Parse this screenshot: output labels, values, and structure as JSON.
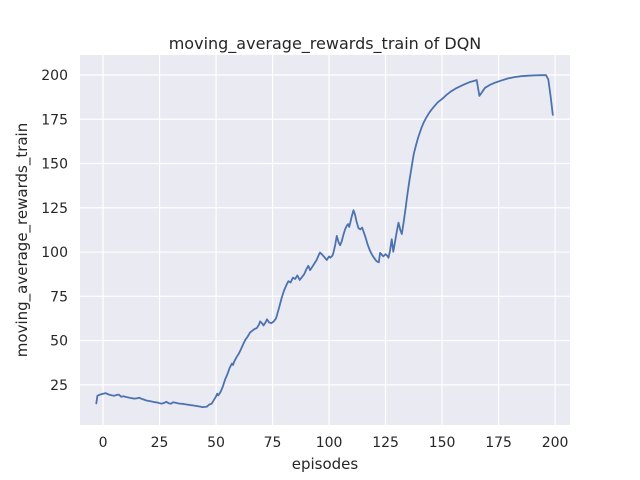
{
  "chart_data": {
    "type": "line",
    "title": "moving_average_rewards_train of DQN",
    "xlabel": "episodes",
    "ylabel": "moving_average_rewards_train",
    "x_ticks": [
      0,
      25,
      50,
      75,
      100,
      125,
      150,
      175,
      200
    ],
    "y_ticks": [
      25,
      50,
      75,
      100,
      125,
      150,
      175,
      200
    ],
    "xlim": [
      -10.2,
      206.6
    ],
    "ylim": [
      2.3,
      211.3
    ],
    "grid": true,
    "legend_visible": false,
    "style": {
      "plot_background": "#eaeaf2",
      "figure_background": "#ffffff",
      "grid_color": "#ffffff",
      "line_color": "#4c72b0",
      "text_color": "#262626"
    },
    "series": [
      {
        "name": "moving_average_rewards_train",
        "points": [
          [
            -3,
            14.5
          ],
          [
            -2.5,
            18.8
          ],
          [
            -1.5,
            19.4
          ],
          [
            0,
            19.9
          ],
          [
            1,
            20.3
          ],
          [
            2,
            19.8
          ],
          [
            3,
            19.3
          ],
          [
            4,
            19.0
          ],
          [
            5,
            18.8
          ],
          [
            6,
            19.3
          ],
          [
            7,
            19.5
          ],
          [
            8,
            18.3
          ],
          [
            9,
            18.5
          ],
          [
            10,
            18.2
          ],
          [
            11,
            17.9
          ],
          [
            12,
            17.6
          ],
          [
            13,
            17.4
          ],
          [
            14,
            17.2
          ],
          [
            15,
            17.4
          ],
          [
            16,
            17.7
          ],
          [
            17,
            17.1
          ],
          [
            18,
            16.7
          ],
          [
            19,
            16.2
          ],
          [
            20,
            15.9
          ],
          [
            21,
            15.7
          ],
          [
            22,
            15.4
          ],
          [
            23,
            15.2
          ],
          [
            24,
            15.0
          ],
          [
            25,
            14.6
          ],
          [
            26,
            14.4
          ],
          [
            27,
            14.8
          ],
          [
            28,
            15.4
          ],
          [
            29,
            14.6
          ],
          [
            30,
            14.3
          ],
          [
            31,
            15.2
          ],
          [
            32,
            14.9
          ],
          [
            33,
            14.6
          ],
          [
            34,
            14.4
          ],
          [
            35,
            14.3
          ],
          [
            36,
            14.1
          ],
          [
            37,
            13.9
          ],
          [
            38,
            13.7
          ],
          [
            39,
            13.5
          ],
          [
            40,
            13.3
          ],
          [
            41,
            13.1
          ],
          [
            42,
            12.9
          ],
          [
            43,
            12.7
          ],
          [
            44,
            12.4
          ],
          [
            45,
            12.5
          ],
          [
            46,
            12.7
          ],
          [
            47,
            13.9
          ],
          [
            48,
            14.3
          ],
          [
            49,
            16.3
          ],
          [
            50,
            18.5
          ],
          [
            50.5,
            20.0
          ],
          [
            51,
            19.0
          ],
          [
            52,
            21.0
          ],
          [
            53,
            24.0
          ],
          [
            54,
            28.0
          ],
          [
            55,
            31.0
          ],
          [
            56,
            34.5
          ],
          [
            57,
            37.0
          ],
          [
            57.5,
            36.2
          ],
          [
            58,
            38.0
          ],
          [
            59,
            40.5
          ],
          [
            60,
            42.5
          ],
          [
            61,
            45.0
          ],
          [
            62,
            48.0
          ],
          [
            63,
            50.5
          ],
          [
            64,
            52.3
          ],
          [
            65,
            54.5
          ],
          [
            66,
            55.5
          ],
          [
            67,
            56.5
          ],
          [
            68,
            57.0
          ],
          [
            69,
            59.0
          ],
          [
            69.5,
            60.8
          ],
          [
            70.5,
            59.5
          ],
          [
            71,
            58.5
          ],
          [
            72,
            60.5
          ],
          [
            72.5,
            62.0
          ],
          [
            73.5,
            60.2
          ],
          [
            74.5,
            59.8
          ],
          [
            75.5,
            60.8
          ],
          [
            76.5,
            62.5
          ],
          [
            77,
            64.6
          ],
          [
            78,
            69.0
          ],
          [
            79,
            74.0
          ],
          [
            80,
            78.0
          ],
          [
            81,
            81.0
          ],
          [
            82,
            83.5
          ],
          [
            83,
            82.8
          ],
          [
            84,
            85.5
          ],
          [
            85,
            84.8
          ],
          [
            86,
            86.8
          ],
          [
            87,
            84.2
          ],
          [
            88,
            85.8
          ],
          [
            89,
            87.5
          ],
          [
            90,
            90.5
          ],
          [
            90.8,
            92.2
          ],
          [
            91.6,
            89.8
          ],
          [
            92.5,
            91.5
          ],
          [
            93.5,
            93.5
          ],
          [
            94.5,
            95.5
          ],
          [
            95.5,
            98.5
          ],
          [
            96,
            99.7
          ],
          [
            97,
            98.5
          ],
          [
            98,
            97.0
          ],
          [
            99,
            95.5
          ],
          [
            99.5,
            96.5
          ],
          [
            100,
            97.5
          ],
          [
            100.5,
            96.8
          ],
          [
            101.5,
            98.0
          ],
          [
            102,
            100.0
          ],
          [
            102.7,
            104.0
          ],
          [
            103.4,
            109.1
          ],
          [
            104.2,
            105.5
          ],
          [
            104.9,
            103.8
          ],
          [
            105.6,
            106.0
          ],
          [
            106.3,
            109.5
          ],
          [
            107,
            112.5
          ],
          [
            107.8,
            114.8
          ],
          [
            108.4,
            115.8
          ],
          [
            108.9,
            114.2
          ],
          [
            109.5,
            117.0
          ],
          [
            110,
            120.0
          ],
          [
            110.8,
            123.6
          ],
          [
            111.5,
            121.0
          ],
          [
            112.2,
            117.0
          ],
          [
            113,
            113.5
          ],
          [
            113.8,
            112.8
          ],
          [
            114.6,
            113.8
          ],
          [
            115.4,
            111.0
          ],
          [
            116.2,
            108.0
          ],
          [
            117,
            104.5
          ],
          [
            118,
            101.0
          ],
          [
            119,
            98.5
          ],
          [
            120,
            96.5
          ],
          [
            121,
            94.8
          ],
          [
            122,
            94.2
          ],
          [
            122.6,
            99.5
          ],
          [
            123.4,
            98.3
          ],
          [
            124,
            97.6
          ],
          [
            125,
            98.8
          ],
          [
            125.7,
            97.9
          ],
          [
            126.3,
            96.8
          ],
          [
            127,
            101.0
          ],
          [
            127.7,
            107.2
          ],
          [
            128.4,
            100.2
          ],
          [
            129.2,
            106.0
          ],
          [
            130,
            112.0
          ],
          [
            130.7,
            116.6
          ],
          [
            131.5,
            112.5
          ],
          [
            132.2,
            110.2
          ],
          [
            133,
            117.0
          ],
          [
            134,
            126.0
          ],
          [
            134.5,
            131.0
          ],
          [
            135.5,
            140.0
          ],
          [
            136.5,
            148.0
          ],
          [
            137.5,
            155.5
          ],
          [
            138.5,
            160.5
          ],
          [
            139.5,
            165.0
          ],
          [
            141,
            170.5
          ],
          [
            142,
            173.5
          ],
          [
            143,
            176.0
          ],
          [
            144.5,
            179.0
          ],
          [
            146,
            181.5
          ],
          [
            148,
            184.5
          ],
          [
            150,
            186.5
          ],
          [
            152,
            188.8
          ],
          [
            154,
            190.8
          ],
          [
            156,
            192.3
          ],
          [
            158,
            193.6
          ],
          [
            160,
            194.8
          ],
          [
            162,
            195.9
          ],
          [
            164,
            196.6
          ],
          [
            165.3,
            197.1
          ],
          [
            166.5,
            188.2
          ],
          [
            167.5,
            190.0
          ],
          [
            169,
            192.8
          ],
          [
            171,
            194.3
          ],
          [
            173.5,
            195.7
          ],
          [
            176,
            196.8
          ],
          [
            179,
            198.0
          ],
          [
            182,
            198.8
          ],
          [
            185,
            199.3
          ],
          [
            188,
            199.6
          ],
          [
            191,
            199.8
          ],
          [
            194,
            199.9
          ],
          [
            196,
            199.9
          ],
          [
            197,
            197.5
          ],
          [
            198,
            188.0
          ],
          [
            199,
            177.5
          ]
        ]
      }
    ]
  }
}
